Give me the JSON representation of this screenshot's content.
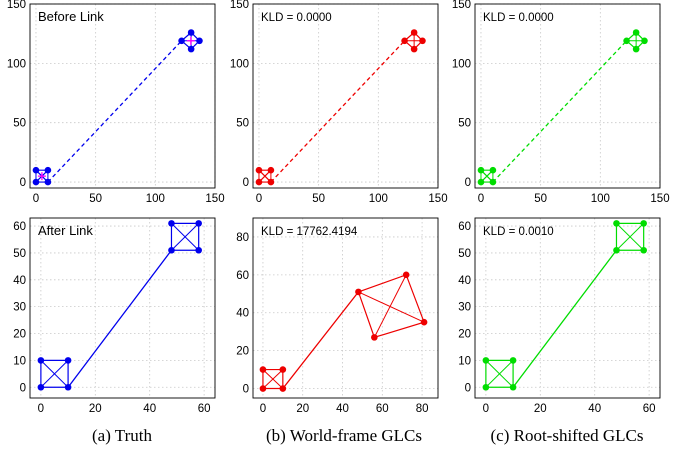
{
  "captions": [
    "(a)  Truth",
    "(b)  World-frame GLCs",
    "(c)  Root-shifted GLCs"
  ],
  "colors": {
    "blue": "#0000ee",
    "red": "#ee0000",
    "green": "#00dd00",
    "pink": "#ff00ff",
    "grid": "#c8c8c8"
  },
  "chart_data": [
    {
      "type": "scatter",
      "panel": "a-top",
      "title": "",
      "xlabel": "",
      "ylabel": "",
      "annotation": "Before Link",
      "xlim": [
        -5,
        150
      ],
      "ylim": [
        -5,
        150
      ],
      "xticks": [
        0,
        50,
        100,
        150
      ],
      "yticks": [
        0,
        50,
        100,
        150
      ],
      "grid": true,
      "color": "blue",
      "series": [
        {
          "values": [
            [
              0,
              0
            ],
            [
              10,
              0
            ],
            [
              0,
              10
            ],
            [
              10,
              10
            ]
          ],
          "style": "square-x",
          "center_marker": "pink"
        },
        {
          "values": [
            [
              122,
              119
            ],
            [
              130,
              112
            ],
            [
              137,
              119
            ],
            [
              130,
              126
            ]
          ],
          "style": "square-x",
          "center_marker": "pink"
        },
        {
          "values": [
            [
              10,
              0
            ],
            [
              122,
              119
            ]
          ],
          "style": "dashed"
        }
      ]
    },
    {
      "type": "scatter",
      "panel": "b-top",
      "title": "",
      "xlabel": "",
      "ylabel": "",
      "annotation": "KLD = 0.0000",
      "xlim": [
        -5,
        150
      ],
      "ylim": [
        -5,
        150
      ],
      "xticks": [
        0,
        50,
        100,
        150
      ],
      "yticks": [
        0,
        50,
        100,
        150
      ],
      "grid": true,
      "color": "red",
      "series": [
        {
          "values": [
            [
              0,
              0
            ],
            [
              10,
              0
            ],
            [
              0,
              10
            ],
            [
              10,
              10
            ]
          ],
          "style": "square-x"
        },
        {
          "values": [
            [
              122,
              119
            ],
            [
              130,
              112
            ],
            [
              137,
              119
            ],
            [
              130,
              126
            ]
          ],
          "style": "square-x"
        },
        {
          "values": [
            [
              10,
              0
            ],
            [
              122,
              119
            ]
          ],
          "style": "dashed"
        }
      ]
    },
    {
      "type": "scatter",
      "panel": "c-top",
      "title": "",
      "xlabel": "",
      "ylabel": "",
      "annotation": "KLD = 0.0000",
      "xlim": [
        -5,
        150
      ],
      "ylim": [
        -5,
        150
      ],
      "xticks": [
        0,
        50,
        100,
        150
      ],
      "yticks": [
        0,
        50,
        100,
        150
      ],
      "grid": true,
      "color": "green",
      "series": [
        {
          "values": [
            [
              0,
              0
            ],
            [
              10,
              0
            ],
            [
              0,
              10
            ],
            [
              10,
              10
            ]
          ],
          "style": "square-x"
        },
        {
          "values": [
            [
              122,
              119
            ],
            [
              130,
              112
            ],
            [
              137,
              119
            ],
            [
              130,
              126
            ]
          ],
          "style": "square-x"
        },
        {
          "values": [
            [
              10,
              0
            ],
            [
              122,
              119
            ]
          ],
          "style": "dashed"
        }
      ]
    },
    {
      "type": "scatter",
      "panel": "a-bottom",
      "title": "",
      "xlabel": "",
      "ylabel": "",
      "annotation": "After Link",
      "xlim": [
        -4,
        64
      ],
      "ylim": [
        -4,
        63
      ],
      "xticks": [
        0,
        20,
        40,
        60
      ],
      "yticks": [
        0,
        10,
        20,
        30,
        40,
        50,
        60
      ],
      "grid": true,
      "color": "blue",
      "series": [
        {
          "values": [
            [
              0,
              0
            ],
            [
              10,
              0
            ],
            [
              10,
              10
            ],
            [
              0,
              10
            ]
          ],
          "style": "square-x"
        },
        {
          "values": [
            [
              48,
              51
            ],
            [
              58,
              51
            ],
            [
              58,
              61
            ],
            [
              48,
              61
            ]
          ],
          "style": "square-x"
        },
        {
          "values": [
            [
              10,
              0
            ],
            [
              48,
              51
            ]
          ],
          "style": "solid"
        }
      ]
    },
    {
      "type": "scatter",
      "panel": "b-bottom",
      "title": "",
      "xlabel": "",
      "ylabel": "",
      "annotation": "KLD = 17762.4194",
      "xlim": [
        -5,
        88
      ],
      "ylim": [
        -5,
        90
      ],
      "xticks": [
        0,
        20,
        40,
        60,
        80
      ],
      "yticks": [
        0,
        20,
        40,
        60,
        80
      ],
      "grid": true,
      "color": "red",
      "series": [
        {
          "values": [
            [
              0,
              0
            ],
            [
              10,
              0
            ],
            [
              10,
              10
            ],
            [
              0,
              10
            ]
          ],
          "style": "square-x"
        },
        {
          "values": [
            [
              48,
              51
            ],
            [
              72,
              60
            ],
            [
              81,
              35
            ],
            [
              56,
              27
            ]
          ],
          "style": "square-x"
        },
        {
          "values": [
            [
              10,
              0
            ],
            [
              48,
              51
            ]
          ],
          "style": "solid"
        }
      ]
    },
    {
      "type": "scatter",
      "panel": "c-bottom",
      "title": "",
      "xlabel": "",
      "ylabel": "",
      "annotation": "KLD = 0.0010",
      "xlim": [
        -4,
        64
      ],
      "ylim": [
        -4,
        63
      ],
      "xticks": [
        0,
        20,
        40,
        60
      ],
      "yticks": [
        0,
        10,
        20,
        30,
        40,
        50,
        60
      ],
      "grid": true,
      "color": "green",
      "series": [
        {
          "values": [
            [
              0,
              0
            ],
            [
              10,
              0
            ],
            [
              10,
              10
            ],
            [
              0,
              10
            ]
          ],
          "style": "square-x"
        },
        {
          "values": [
            [
              48,
              51
            ],
            [
              58,
              51
            ],
            [
              58,
              61
            ],
            [
              48,
              61
            ]
          ],
          "style": "square-x"
        },
        {
          "values": [
            [
              10,
              0
            ],
            [
              48,
              51
            ]
          ],
          "style": "solid"
        }
      ]
    }
  ]
}
